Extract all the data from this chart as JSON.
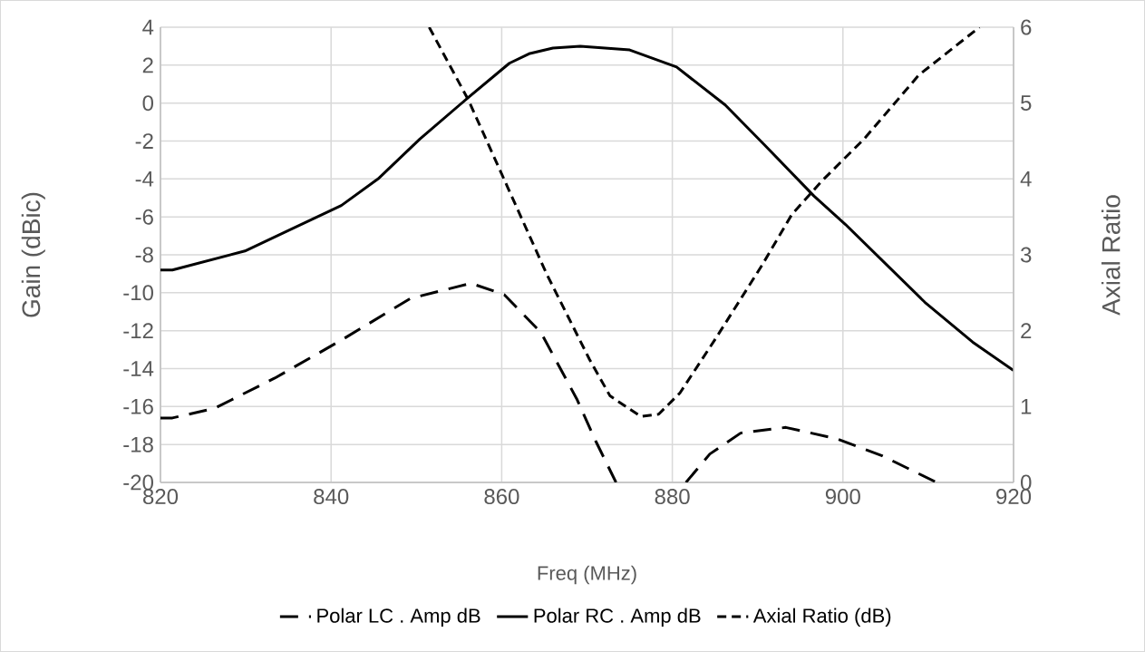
{
  "chart_data": {
    "type": "line",
    "xlabel": "Freq (MHz)",
    "ylabel": "Gain (dBic)",
    "y2label": "Axial Ratio",
    "xlim": [
      820,
      920
    ],
    "xticks": [
      820,
      840,
      860,
      880,
      900,
      920
    ],
    "ylim": [
      -20,
      4
    ],
    "yticks": [
      -20,
      -18,
      -16,
      -14,
      -12,
      -10,
      -8,
      -6,
      -4,
      -2,
      0,
      2,
      4
    ],
    "y2lim": [
      0,
      6
    ],
    "y2ticks": [
      0,
      1,
      2,
      3,
      4,
      5,
      6
    ],
    "grid": true,
    "legend": "bottom",
    "marker": "none",
    "series": [
      {
        "name": "Polar LC . Amp dB",
        "color": "#000000",
        "line_style": "dashed",
        "x": [
          820,
          821.4,
          826.3,
          833.4,
          841.2,
          849.3,
          856.4,
          860.3,
          864.6,
          868.8,
          871,
          873.4,
          877,
          881.6,
          884.4,
          888,
          893.3,
          899.3,
          904.6,
          911
        ],
        "values": [
          -16.6,
          -16.6,
          -16.1,
          -14.5,
          -12.5,
          -10.3,
          -9.5,
          -10.1,
          -12.1,
          -15.6,
          -17.8,
          -20,
          null,
          -20,
          -18.5,
          -17.4,
          -17.1,
          -17.7,
          -18.6,
          -20
        ]
      },
      {
        "name": "Polar RC . Amp dB",
        "color": "#000000",
        "line_style": "solid",
        "x": [
          820,
          821.4,
          829.9,
          841.2,
          845.5,
          850.4,
          856.1,
          860.9,
          863.2,
          866,
          869.2,
          875,
          880.5,
          886.2,
          890.8,
          896.6,
          900.3,
          909.6,
          915.2,
          920
        ],
        "values": [
          -8.8,
          -8.8,
          -7.8,
          -5.4,
          -4.0,
          -1.9,
          0.3,
          2.1,
          2.6,
          2.9,
          3.0,
          2.8,
          1.9,
          -0.1,
          -2.2,
          -4.9,
          -6.4,
          -10.5,
          -12.6,
          -14.1
        ]
      },
      {
        "name": "Axial Ratio (dB)",
        "color": "#000000",
        "line_style": "dotted",
        "axis": "y2",
        "x": [
          851.5,
          856.1,
          860.7,
          865.3,
          870.3,
          872.7,
          876.3,
          878.4,
          880.9,
          885.1,
          890.5,
          894,
          897.5,
          902.5,
          908.9,
          916
        ],
        "values": [
          6,
          5.04,
          3.89,
          2.74,
          1.62,
          1.14,
          0.87,
          0.9,
          1.18,
          1.9,
          2.86,
          3.53,
          3.97,
          4.53,
          5.37,
          6
        ]
      }
    ]
  }
}
